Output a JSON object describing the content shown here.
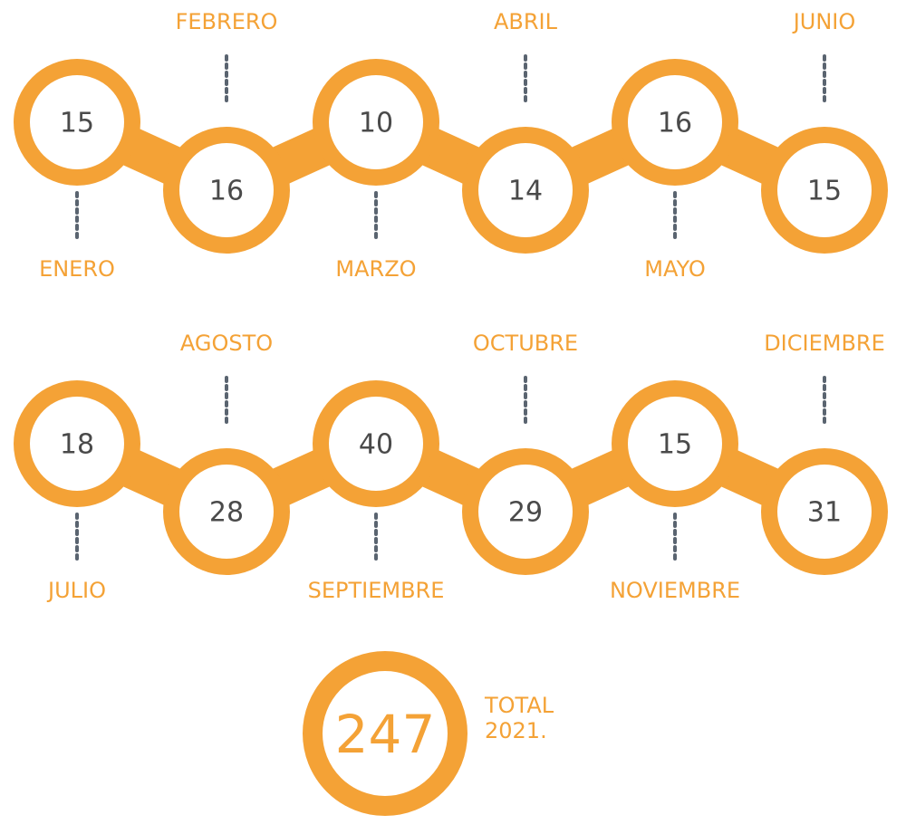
{
  "months": [
    {
      "name": "ENERO",
      "value": 15
    },
    {
      "name": "FEBRERO",
      "value": 16
    },
    {
      "name": "MARZO",
      "value": 10
    },
    {
      "name": "ABRIL",
      "value": 14
    },
    {
      "name": "MAYO",
      "value": 16
    },
    {
      "name": "JUNIO",
      "value": 15
    },
    {
      "name": "JULIO",
      "value": 18
    },
    {
      "name": "AGOSTO",
      "value": 28
    },
    {
      "name": "SEPTIEMBRE",
      "value": 40
    },
    {
      "name": "OCTUBRE",
      "value": 29
    },
    {
      "name": "NOVIEMBRE",
      "value": 15
    },
    {
      "name": "DICIEMBRE",
      "value": 31
    }
  ],
  "total": {
    "value": 247,
    "label": "TOTAL",
    "year": "2021."
  }
}
